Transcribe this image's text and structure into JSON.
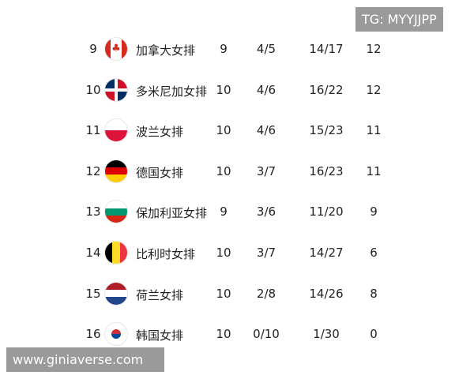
{
  "watermarks": {
    "top_right": "TG: MYYJJPP",
    "bottom_left": "www.giniaverse.com"
  },
  "rows": [
    {
      "rank": "9",
      "flag": "canada-flag-icon",
      "team": "加拿大女排",
      "played": "9",
      "record": "4/5",
      "sets": "14/17",
      "points": "12"
    },
    {
      "rank": "10",
      "flag": "dominican-republic-flag-icon",
      "team": "多米尼加女排",
      "played": "10",
      "record": "4/6",
      "sets": "16/22",
      "points": "12"
    },
    {
      "rank": "11",
      "flag": "poland-flag-icon",
      "team": "波兰女排",
      "played": "10",
      "record": "4/6",
      "sets": "15/23",
      "points": "11"
    },
    {
      "rank": "12",
      "flag": "germany-flag-icon",
      "team": "德国女排",
      "played": "10",
      "record": "3/7",
      "sets": "16/23",
      "points": "11"
    },
    {
      "rank": "13",
      "flag": "bulgaria-flag-icon",
      "team": "保加利亚女排",
      "played": "9",
      "record": "3/6",
      "sets": "11/20",
      "points": "9"
    },
    {
      "rank": "14",
      "flag": "belgium-flag-icon",
      "team": "比利时女排",
      "played": "10",
      "record": "3/7",
      "sets": "14/27",
      "points": "6"
    },
    {
      "rank": "15",
      "flag": "netherlands-flag-icon",
      "team": "荷兰女排",
      "played": "10",
      "record": "2/8",
      "sets": "14/26",
      "points": "8"
    },
    {
      "rank": "16",
      "flag": "south-korea-flag-icon",
      "team": "韩国女排",
      "played": "10",
      "record": "0/10",
      "sets": "1/30",
      "points": "0"
    }
  ]
}
